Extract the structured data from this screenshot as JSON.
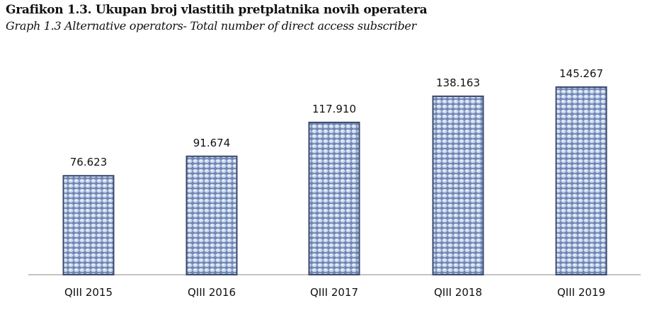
{
  "chart_data": {
    "type": "bar",
    "title": "Grafikon 1.3. Ukupan broj vlastitih pretplatnika novih operatera",
    "subtitle": "Graph 1.3 Alternative operators- Total number of direct access subscriber",
    "categories": [
      "QIII 2015",
      "QIII 2016",
      "QIII 2017",
      "QIII 2018",
      "QIII 2019"
    ],
    "values": [
      76623,
      91674,
      117910,
      138163,
      145267
    ],
    "data_labels": [
      "76.623",
      "91.674",
      "117.910",
      "138.163",
      "145.267"
    ],
    "xlabel": "",
    "ylabel": "",
    "ylim": [
      0,
      145267
    ],
    "grid": false,
    "bar_color": "#8faad6",
    "bar_border": "#3b4a6b"
  }
}
